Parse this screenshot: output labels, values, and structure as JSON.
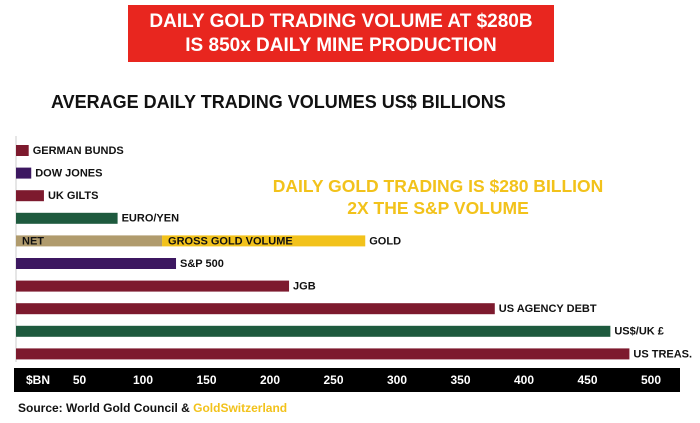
{
  "banner": {
    "line1": "DAILY GOLD TRADING VOLUME AT $280B",
    "line2": "IS 850x DAILY MINE PRODUCTION"
  },
  "highlight": {
    "line1": "DAILY GOLD TRADING IS $280 BILLION",
    "line2": "2X THE S&P VOLUME"
  },
  "source": {
    "prefix": "Source: World Gold Council & ",
    "brand": "GoldSwitzerland"
  },
  "colors": {
    "maroon": "#7d1a2e",
    "purple": "#3c1760",
    "green": "#1e5a3e",
    "tan": "#b09b6d",
    "gold": "#f2c21b",
    "banner_red": "#e8261f",
    "axis_bar": "#000000"
  },
  "chart_data": {
    "type": "bar",
    "orientation": "horizontal",
    "title": "AVERAGE DAILY TRADING VOLUMES US$ BILLIONS",
    "xlabel": "$BN",
    "xlim": [
      0,
      500
    ],
    "x_ticks": [
      50,
      100,
      150,
      200,
      250,
      300,
      350,
      400,
      450,
      500
    ],
    "grid": false,
    "legend": "none",
    "bars": [
      {
        "label": "GERMAN BUNDS",
        "value": 10,
        "color": "#7d1a2e"
      },
      {
        "label": "DOW JONES",
        "value": 12,
        "color": "#3c1760"
      },
      {
        "label": "UK GILTS",
        "value": 22,
        "color": "#7d1a2e"
      },
      {
        "label": "EURO/YEN",
        "value": 80,
        "color": "#1e5a3e"
      },
      {
        "label": "GOLD",
        "value": 275,
        "segments": [
          {
            "label": "NET",
            "value": 115,
            "color": "#b09b6d"
          },
          {
            "label": "GROSS GOLD VOLUME",
            "value": 160,
            "color": "#f2c21b"
          }
        ]
      },
      {
        "label": "S&P 500",
        "value": 126,
        "color": "#3c1760"
      },
      {
        "label": "JGB",
        "value": 215,
        "color": "#7d1a2e"
      },
      {
        "label": "US AGENCY DEBT",
        "value": 377,
        "color": "#7d1a2e"
      },
      {
        "label": "US$/UK £",
        "value": 468,
        "color": "#1e5a3e"
      },
      {
        "label": "US TREAS.",
        "value": 483,
        "color": "#7d1a2e"
      }
    ]
  }
}
